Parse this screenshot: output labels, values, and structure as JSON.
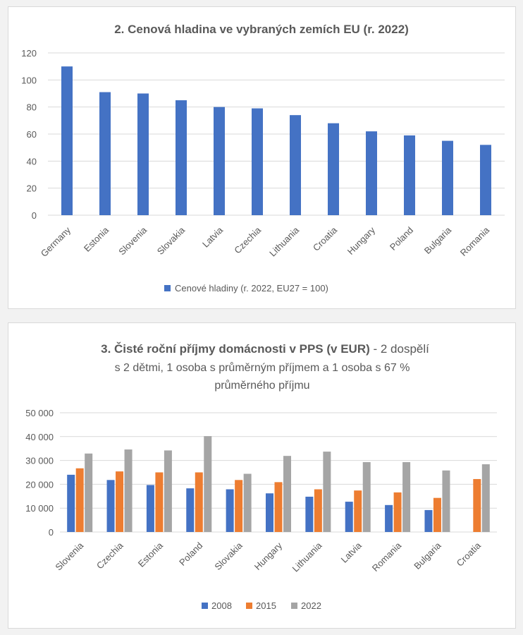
{
  "chart_data": [
    {
      "type": "bar",
      "title": "2. Cenová hladina ve vybraných zemích EU (r. 2022)",
      "categories": [
        "Germany",
        "Estonia",
        "Slovenia",
        "Slovakia",
        "Latvia",
        "Czechia",
        "Lithuania",
        "Croatia",
        "Hungary",
        "Poland",
        "Bulgaria",
        "Romania"
      ],
      "series": [
        {
          "name": "Cenové hladiny (r. 2022, EU27 = 100)",
          "color": "#4472c4",
          "values": [
            110,
            91,
            90,
            85,
            80,
            79,
            74,
            68,
            62,
            59,
            55,
            52
          ]
        }
      ],
      "yticks": [
        "0",
        "20",
        "40",
        "60",
        "80",
        "100",
        "120"
      ],
      "ylim": [
        0,
        120
      ],
      "grid": true,
      "legend": "bottom"
    },
    {
      "type": "bar",
      "title_bold": "3. Čisté roční příjmy domácnosti v PPS (v EUR)",
      "title_rest": " - 2 dospělí",
      "title_line2": "s 2 dětmi, 1 osoba s průměrným příjmem a 1 osoba s 67 %",
      "title_line3": "průměrného příjmu",
      "categories": [
        "Slovenia",
        "Czechia",
        "Estonia",
        "Poland",
        "Slovakia",
        "Hungary",
        "Lithuania",
        "Latvia",
        "Romania",
        "Bulgaria",
        "Croatia"
      ],
      "series": [
        {
          "name": "2008",
          "color": "#4472c4",
          "values": [
            24000,
            21800,
            19700,
            18300,
            17900,
            16200,
            14800,
            12700,
            11300,
            9200,
            null
          ]
        },
        {
          "name": "2015",
          "color": "#ed7d31",
          "values": [
            26700,
            25400,
            25000,
            25000,
            21800,
            20900,
            17900,
            17400,
            16600,
            14300,
            22200
          ]
        },
        {
          "name": "2022",
          "color": "#a5a5a5",
          "values": [
            32900,
            34600,
            34200,
            40200,
            24400,
            31900,
            33700,
            29300,
            29300,
            25800,
            28400
          ]
        }
      ],
      "yticks": [
        "0",
        "10 000",
        "20 000",
        "30 000",
        "40 000",
        "50 000"
      ],
      "ylim": [
        0,
        50000
      ],
      "grid": true,
      "legend": "bottom"
    }
  ]
}
